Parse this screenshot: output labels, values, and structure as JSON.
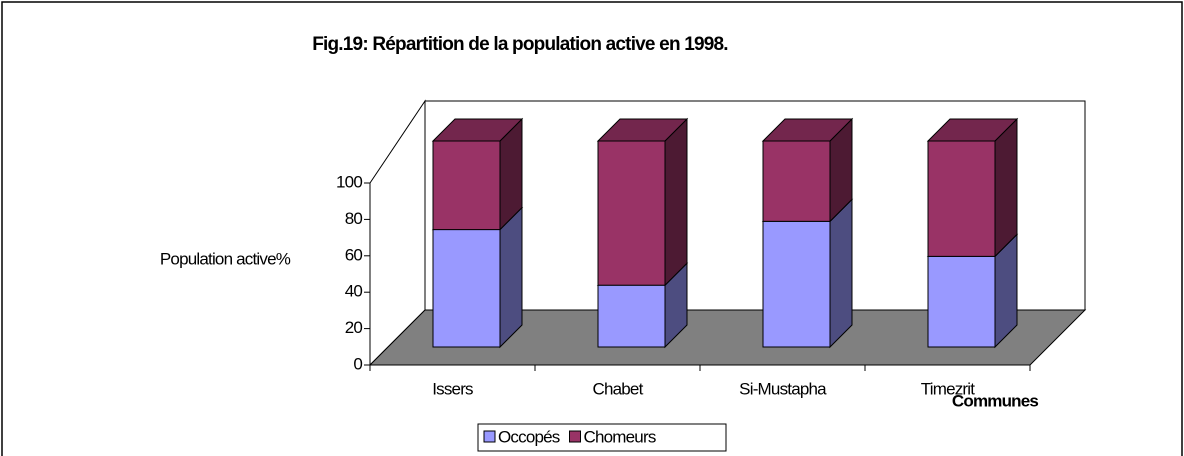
{
  "chart_data": {
    "type": "bar3d_stacked",
    "title": "Fig.19: Répartition de la population active en 1998.",
    "y_label": "Population active%",
    "x_label": "Communes",
    "categories": [
      "Issers",
      "Chabet",
      "Si-Mustapha",
      "Timezrit"
    ],
    "series": [
      {
        "name": "Occopés",
        "color": "#9999ff",
        "values": [
          57,
          30,
          61,
          44
        ]
      },
      {
        "name": "Chomeurs",
        "color": "#993366",
        "values": [
          43,
          70,
          39,
          56
        ]
      }
    ],
    "ylim": [
      0,
      100
    ],
    "yticks": [
      0,
      20,
      40,
      60,
      80,
      100
    ]
  }
}
